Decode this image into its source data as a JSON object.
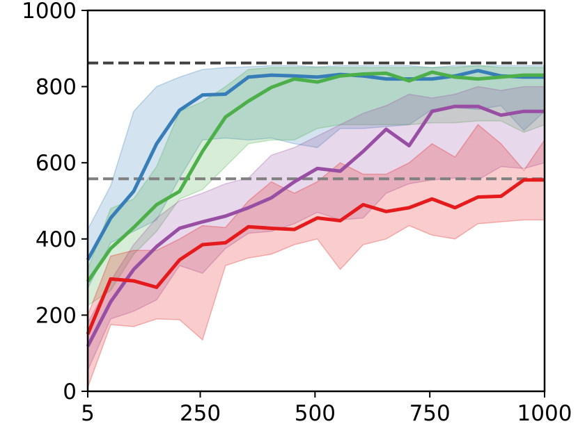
{
  "chart_data": {
    "type": "line",
    "title": "",
    "xlabel": "",
    "ylabel": "",
    "xlim": [
      5,
      1000
    ],
    "ylim": [
      0,
      1000
    ],
    "xticks": [
      5,
      250,
      500,
      750,
      1000
    ],
    "xtick_labels": [
      "5",
      "250",
      "500",
      "750",
      "1000"
    ],
    "yticks": [
      0,
      200,
      400,
      600,
      800,
      1000
    ],
    "ytick_labels": [
      "0",
      "200",
      "400",
      "600",
      "800",
      "1000"
    ],
    "grid": false,
    "legend": "none",
    "x": [
      5,
      55,
      105,
      155,
      205,
      255,
      305,
      355,
      405,
      455,
      505,
      555,
      605,
      655,
      705,
      755,
      805,
      855,
      905,
      955,
      1000
    ],
    "reference_lines": [
      {
        "y": 862,
        "color": "#404040",
        "style": "dashed"
      },
      {
        "y": 558,
        "color": "#808080",
        "style": "dashed"
      }
    ],
    "series": [
      {
        "color": "#377eb8",
        "mean": [
          345,
          455,
          525,
          650,
          738,
          778,
          780,
          825,
          830,
          828,
          825,
          832,
          828,
          820,
          820,
          820,
          828,
          842,
          828,
          825,
          825
        ],
        "lower": [
          270,
          390,
          420,
          450,
          560,
          660,
          665,
          660,
          665,
          650,
          640,
          690,
          690,
          695,
          700,
          740,
          745,
          740,
          750,
          685,
          735
        ],
        "upper": [
          425,
          540,
          735,
          800,
          825,
          845,
          850,
          852,
          855,
          855,
          852,
          855,
          855,
          855,
          855,
          850,
          855,
          855,
          855,
          855,
          855
        ]
      },
      {
        "color": "#4daf4a",
        "mean": [
          288,
          375,
          430,
          490,
          525,
          630,
          720,
          762,
          798,
          820,
          812,
          828,
          833,
          835,
          815,
          838,
          825,
          820,
          825,
          830,
          830
        ],
        "lower": [
          225,
          265,
          360,
          420,
          505,
          530,
          590,
          650,
          660,
          660,
          690,
          700,
          700,
          700,
          700,
          705,
          705,
          710,
          710,
          680,
          700
        ],
        "upper": [
          320,
          480,
          505,
          590,
          735,
          760,
          800,
          845,
          850,
          850,
          850,
          850,
          850,
          850,
          850,
          850,
          850,
          855,
          850,
          850,
          850
        ]
      },
      {
        "color": "#984ea3",
        "mean": [
          118,
          235,
          320,
          380,
          428,
          445,
          460,
          482,
          508,
          550,
          585,
          578,
          630,
          688,
          645,
          735,
          748,
          748,
          725,
          735,
          735
        ],
        "lower": [
          55,
          190,
          210,
          240,
          330,
          310,
          375,
          415,
          420,
          440,
          470,
          450,
          455,
          520,
          545,
          555,
          560,
          555,
          590,
          585,
          600
        ],
        "upper": [
          180,
          290,
          385,
          455,
          500,
          520,
          545,
          560,
          620,
          640,
          670,
          700,
          730,
          750,
          780,
          770,
          780,
          800,
          790,
          800,
          800
        ]
      },
      {
        "color": "#e41a1c",
        "mean": [
          150,
          295,
          290,
          273,
          345,
          385,
          390,
          432,
          428,
          425,
          455,
          448,
          490,
          472,
          482,
          505,
          482,
          510,
          512,
          555,
          555
        ],
        "lower": [
          10,
          175,
          170,
          190,
          188,
          135,
          330,
          350,
          360,
          385,
          400,
          320,
          385,
          400,
          435,
          410,
          400,
          440,
          445,
          450,
          450
        ],
        "upper": [
          200,
          355,
          370,
          370,
          400,
          435,
          430,
          500,
          550,
          520,
          550,
          600,
          570,
          570,
          600,
          650,
          615,
          700,
          650,
          580,
          660
        ]
      }
    ]
  }
}
